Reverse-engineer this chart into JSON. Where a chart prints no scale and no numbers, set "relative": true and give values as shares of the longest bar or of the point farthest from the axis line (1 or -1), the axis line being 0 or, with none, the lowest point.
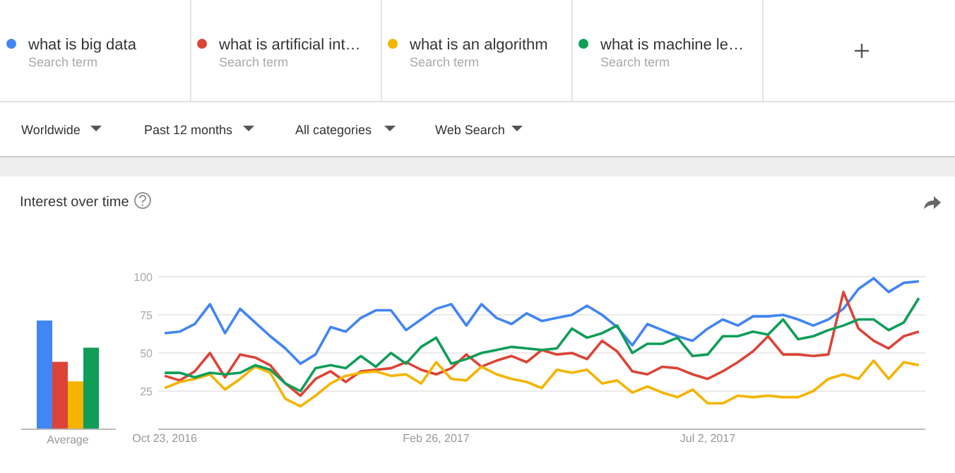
{
  "chart_data": [
    {
      "type": "bar",
      "relative": true,
      "categories": [
        "Average"
      ],
      "series": [
        {
          "color": "#4285f4",
          "values": [
            1
          ]
        },
        {
          "color": "#db4437",
          "values": [
            0.62
          ]
        },
        {
          "color": "#f4b400",
          "values": [
            0.44
          ]
        },
        {
          "color": "#0f9d58",
          "values": [
            0.75
          ]
        }
      ]
    },
    {
      "type": "line",
      "title": "Interest over time",
      "legend": "top",
      "grid": "y",
      "annotations": [
        "Search term",
        "Search term",
        "Search term",
        "Search term",
        "Worldwide",
        "Past 12 months",
        "All categories",
        "Web Search"
      ],
      "x": [
        "2016-10-23",
        "2016-10-30",
        "2016-11-06",
        "2016-11-13",
        "2016-11-20",
        "2016-11-27",
        "2016-12-04",
        "2016-12-11",
        "2016-12-18",
        "2016-12-25",
        "2017-01-01",
        "2017-01-08",
        "2017-01-15",
        "2017-01-22",
        "2017-01-29",
        "2017-02-05",
        "2017-02-12",
        "2017-02-19",
        "2017-02-26",
        "2017-03-05",
        "2017-03-12",
        "2017-03-19",
        "2017-03-26",
        "2017-04-02",
        "2017-04-09",
        "2017-04-16",
        "2017-04-23",
        "2017-04-30",
        "2017-05-07",
        "2017-05-14",
        "2017-05-21",
        "2017-05-28",
        "2017-06-04",
        "2017-06-11",
        "2017-06-18",
        "2017-06-25",
        "2017-07-02",
        "2017-07-09",
        "2017-07-16",
        "2017-07-23",
        "2017-07-30",
        "2017-08-06",
        "2017-08-13",
        "2017-08-20",
        "2017-08-27",
        "2017-09-03",
        "2017-09-10",
        "2017-09-17",
        "2017-09-24",
        "2017-10-01",
        "2017-10-08"
      ],
      "xlim": [
        "2016-10-20",
        "2017-10-11"
      ],
      "xticks": [
        {
          "value": "2016-10-23",
          "label": "Oct 23, 2016"
        },
        {
          "value": "2017-02-26",
          "label": "Feb 26, 2017"
        },
        {
          "value": "2017-07-02",
          "label": "Jul 2, 2017"
        }
      ],
      "ylim": [
        0,
        100
      ],
      "yticks": [
        25,
        50,
        75,
        100
      ],
      "marker": "none",
      "series": [
        {
          "name": "what is big data",
          "color": "#4285f4",
          "values": [
            63,
            64,
            69,
            82,
            63,
            79,
            70,
            61,
            53,
            43,
            49,
            67,
            64,
            73,
            78,
            78,
            65,
            72,
            79,
            82,
            68,
            82,
            73,
            69,
            76,
            71,
            73,
            75,
            81,
            75,
            67,
            55,
            69,
            65,
            61,
            58,
            66,
            72,
            68,
            74,
            74,
            75,
            72,
            68,
            72,
            79,
            92,
            99,
            90,
            96,
            97
          ]
        },
        {
          "name": "what is artificial int…",
          "color": "#db4437",
          "values": [
            35,
            32,
            38,
            50,
            34,
            49,
            47,
            42,
            30,
            22,
            33,
            38,
            31,
            38,
            39,
            40,
            44,
            39,
            36,
            40,
            49,
            41,
            45,
            48,
            44,
            52,
            49,
            50,
            46,
            58,
            51,
            38,
            36,
            41,
            40,
            36,
            33,
            38,
            44,
            51,
            61,
            49,
            49,
            48,
            49,
            90,
            66,
            58,
            53,
            61,
            64
          ]
        },
        {
          "name": "what is an algorithm",
          "color": "#f4b400",
          "values": [
            27,
            31,
            33,
            36,
            26,
            33,
            41,
            37,
            20,
            15,
            22,
            30,
            35,
            37,
            38,
            35,
            36,
            30,
            44,
            33,
            32,
            41,
            36,
            33,
            31,
            27,
            39,
            37,
            39,
            30,
            32,
            24,
            28,
            24,
            21,
            26,
            17,
            17,
            22,
            21,
            22,
            21,
            21,
            25,
            33,
            36,
            33,
            45,
            33,
            44,
            42
          ]
        },
        {
          "name": "what is machine le…",
          "color": "#0f9d58",
          "values": [
            37,
            37,
            34,
            37,
            36,
            37,
            42,
            39,
            30,
            25,
            40,
            42,
            40,
            48,
            41,
            50,
            43,
            54,
            60,
            43,
            46,
            50,
            52,
            54,
            53,
            52,
            53,
            66,
            60,
            63,
            68,
            50,
            56,
            56,
            60,
            48,
            49,
            61,
            61,
            64,
            62,
            72,
            59,
            61,
            65,
            68,
            72,
            72,
            65,
            70,
            86
          ]
        }
      ]
    }
  ]
}
